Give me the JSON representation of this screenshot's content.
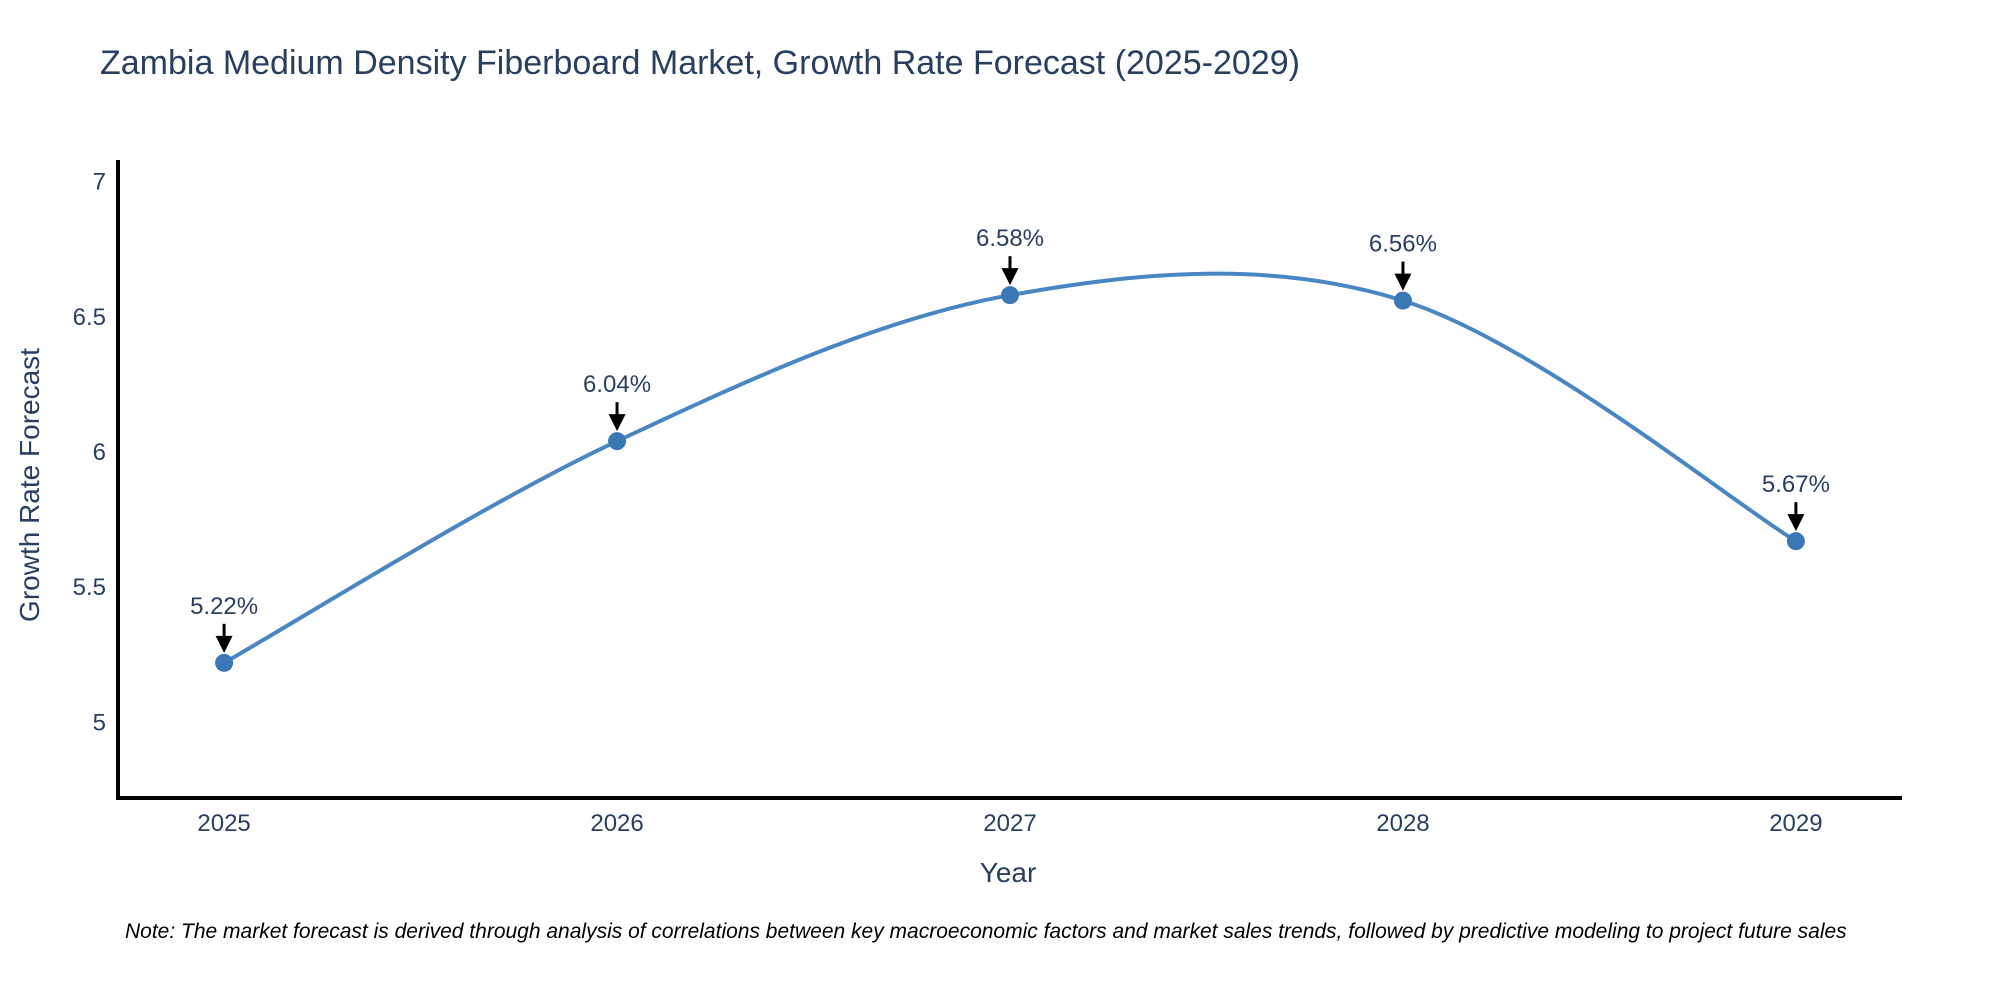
{
  "title": "Zambia Medium Density Fiberboard Market, Growth Rate Forecast (2025-2029)",
  "note": "Note: The market forecast is derived through analysis of correlations between key macroeconomic factors and market sales trends, followed by predictive modeling to project future sales",
  "chart_data": {
    "type": "line",
    "line_shape": "spline",
    "title": "Zambia Medium Density Fiberboard Market, Growth Rate Forecast (2025-2029)",
    "xlabel": "Year",
    "ylabel": "Growth Rate Forecast",
    "x": [
      2025,
      2026,
      2027,
      2028,
      2029
    ],
    "y": [
      5.22,
      6.04,
      6.58,
      6.56,
      5.67
    ],
    "point_labels": [
      "5.22%",
      "6.04%",
      "6.58%",
      "6.56%",
      "5.67%"
    ],
    "xtick_labels": [
      "2025",
      "2026",
      "2027",
      "2028",
      "2029"
    ],
    "ytick_values": [
      5,
      5.5,
      6,
      6.5,
      7
    ],
    "ytick_labels": [
      "5",
      "5.5",
      "6",
      "6.5",
      "7"
    ],
    "xlim": [
      2024.73,
      2029.27
    ],
    "ylim": [
      4.72,
      7.08
    ],
    "grid": false,
    "legend": false,
    "colors": {
      "line": "#4a87c2",
      "marker": "#3a77b5",
      "axis_line": "#000000",
      "text": "#2a3f5f",
      "annotation_arrow": "#000000",
      "note_text": "#000000",
      "background": "#ffffff"
    }
  }
}
